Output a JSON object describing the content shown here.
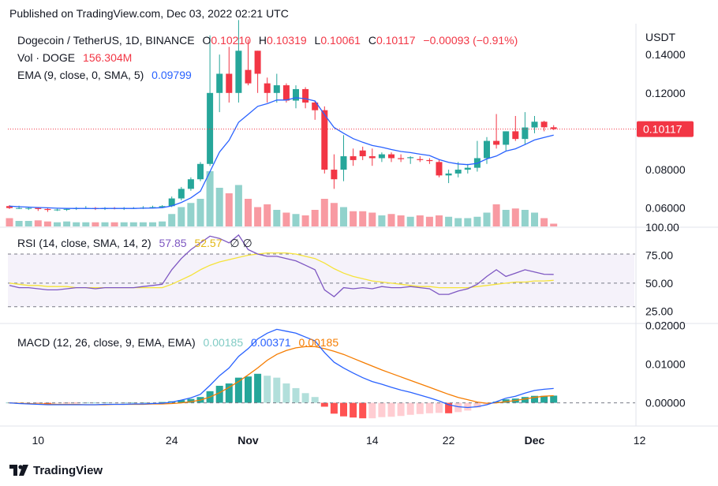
{
  "published": "Published on TradingView.com, Dec 03, 2022 02:21 UTC",
  "footer": {
    "brand": "TradingView",
    "logo_icon": "tradingview-logo-icon"
  },
  "legend": {
    "symbol": "Dogecoin / TetherUS, 1D, BINANCE",
    "o_label": "O",
    "o_value": "0.10210",
    "h_label": "H",
    "h_value": "0.10319",
    "l_label": "L",
    "l_value": "0.10061",
    "c_label": "C",
    "c_value": "0.10117",
    "change": "−0.00093 (−0.91%)",
    "vol_label": "Vol · DOGE",
    "vol_value": "156.304M",
    "ema_label": "EMA (9, close, 0, SMA, 5)",
    "ema_value": "0.09799",
    "rsi_label": "RSI (14, close, SMA, 14, 2)",
    "rsi_value": "57.85",
    "rsi_ma_value": "52.57",
    "rsi_extra": "∅ ∅",
    "macd_label": "MACD (12, 26, close, 9, EMA, EMA)",
    "macd_hist": "0.00185",
    "macd_line": "0.00371",
    "macd_signal": "0.00185"
  },
  "colors": {
    "up": "#26a69a",
    "down": "#f23645",
    "ema": "#2962ff",
    "rsi": "#7e57c2",
    "rsi_ma": "#f5e33a",
    "macd": "#2962ff",
    "signal": "#f57c00"
  },
  "price_axis": {
    "currency": "USDT",
    "ticks": [
      "0.14000",
      "0.12000",
      "0.08000",
      "0.06000"
    ],
    "last_price": "0.10117"
  },
  "rsi_axis": {
    "ticks": [
      "100.00",
      "75.00",
      "50.00",
      "25.00"
    ]
  },
  "macd_axis": {
    "ticks": [
      "0.02000",
      "0.01000",
      "0.00000"
    ]
  },
  "time_axis": {
    "ticks": [
      "10",
      "24",
      "Nov",
      "14",
      "22",
      "Dec",
      "12"
    ]
  },
  "chart_data": {
    "type": "candlestick",
    "dates": [
      "10-07",
      "10-08",
      "10-09",
      "10-10",
      "10-11",
      "10-12",
      "10-13",
      "10-14",
      "10-15",
      "10-16",
      "10-17",
      "10-18",
      "10-19",
      "10-20",
      "10-21",
      "10-22",
      "10-23",
      "10-24",
      "10-25",
      "10-26",
      "10-27",
      "10-28",
      "10-29",
      "10-30",
      "10-31",
      "11-01",
      "11-02",
      "11-03",
      "11-04",
      "11-05",
      "11-06",
      "11-07",
      "11-08",
      "11-09",
      "11-10",
      "11-11",
      "11-12",
      "11-13",
      "11-14",
      "11-15",
      "11-16",
      "11-17",
      "11-18",
      "11-19",
      "11-20",
      "11-21",
      "11-22",
      "11-23",
      "11-24",
      "11-25",
      "11-26",
      "11-27",
      "11-28",
      "11-29",
      "11-30",
      "12-01",
      "12-02",
      "12-03"
    ],
    "open": [
      0.061,
      0.06,
      0.06,
      0.06,
      0.0595,
      0.059,
      0.0592,
      0.0595,
      0.06,
      0.06,
      0.0595,
      0.06,
      0.0598,
      0.06,
      0.06,
      0.0602,
      0.0605,
      0.061,
      0.065,
      0.07,
      0.075,
      0.083,
      0.12,
      0.13,
      0.12,
      0.132,
      0.142,
      0.125,
      0.12,
      0.124,
      0.116,
      0.122,
      0.115,
      0.111,
      0.08,
      0.08,
      0.087,
      0.09,
      0.087,
      0.086,
      0.088,
      0.086,
      0.086,
      0.0855,
      0.085,
      0.084,
      0.077,
      0.078,
      0.08,
      0.081,
      0.086,
      0.095,
      0.093,
      0.1,
      0.096,
      0.102,
      0.105,
      0.1021
    ],
    "high": [
      0.0615,
      0.0612,
      0.0605,
      0.0605,
      0.06,
      0.0596,
      0.06,
      0.0605,
      0.061,
      0.0605,
      0.0605,
      0.0605,
      0.0605,
      0.0605,
      0.061,
      0.0612,
      0.0615,
      0.066,
      0.071,
      0.076,
      0.084,
      0.15,
      0.14,
      0.144,
      0.158,
      0.148,
      0.142,
      0.128,
      0.13,
      0.125,
      0.124,
      0.123,
      0.116,
      0.113,
      0.088,
      0.098,
      0.091,
      0.092,
      0.091,
      0.089,
      0.089,
      0.088,
      0.087,
      0.087,
      0.086,
      0.085,
      0.08,
      0.084,
      0.083,
      0.095,
      0.097,
      0.109,
      0.1,
      0.108,
      0.11,
      0.108,
      0.1055,
      0.1032
    ],
    "low": [
      0.0595,
      0.0595,
      0.059,
      0.0585,
      0.058,
      0.0585,
      0.0585,
      0.059,
      0.0595,
      0.059,
      0.059,
      0.0593,
      0.059,
      0.0595,
      0.0595,
      0.0598,
      0.06,
      0.0605,
      0.064,
      0.069,
      0.074,
      0.082,
      0.11,
      0.115,
      0.115,
      0.124,
      0.12,
      0.115,
      0.115,
      0.115,
      0.112,
      0.112,
      0.106,
      0.078,
      0.07,
      0.074,
      0.082,
      0.085,
      0.082,
      0.084,
      0.084,
      0.084,
      0.083,
      0.084,
      0.083,
      0.076,
      0.073,
      0.076,
      0.078,
      0.079,
      0.083,
      0.091,
      0.09,
      0.095,
      0.093,
      0.099,
      0.1,
      0.1006
    ],
    "close": [
      0.06,
      0.06,
      0.06,
      0.0595,
      0.059,
      0.0592,
      0.0595,
      0.06,
      0.06,
      0.0595,
      0.06,
      0.0598,
      0.06,
      0.06,
      0.0602,
      0.0605,
      0.061,
      0.065,
      0.07,
      0.075,
      0.083,
      0.12,
      0.13,
      0.12,
      0.142,
      0.125,
      0.13,
      0.12,
      0.124,
      0.116,
      0.122,
      0.115,
      0.111,
      0.08,
      0.075,
      0.087,
      0.085,
      0.087,
      0.086,
      0.088,
      0.086,
      0.0855,
      0.0865,
      0.085,
      0.0845,
      0.077,
      0.078,
      0.08,
      0.081,
      0.086,
      0.095,
      0.093,
      0.1,
      0.096,
      0.102,
      0.105,
      0.1021,
      0.1012
    ],
    "volume_relative": [
      0.3,
      0.2,
      0.2,
      0.22,
      0.18,
      0.15,
      0.18,
      0.15,
      0.15,
      0.15,
      0.15,
      0.15,
      0.15,
      0.15,
      0.15,
      0.15,
      0.18,
      0.45,
      0.7,
      0.85,
      1.0,
      2.0,
      1.4,
      1.2,
      1.5,
      1.0,
      0.7,
      0.8,
      0.6,
      0.5,
      0.45,
      0.4,
      0.6,
      1.0,
      0.85,
      0.7,
      0.55,
      0.55,
      0.5,
      0.4,
      0.45,
      0.4,
      0.35,
      0.4,
      0.35,
      0.4,
      0.35,
      0.3,
      0.3,
      0.35,
      0.5,
      0.8,
      0.6,
      0.65,
      0.6,
      0.5,
      0.3,
      0.1
    ],
    "ema": [
      0.061,
      0.0607,
      0.0605,
      0.0603,
      0.0601,
      0.0599,
      0.0598,
      0.0598,
      0.0598,
      0.0597,
      0.0598,
      0.0598,
      0.0598,
      0.0598,
      0.0599,
      0.06,
      0.0602,
      0.0611,
      0.0629,
      0.0653,
      0.0688,
      0.079,
      0.0892,
      0.0953,
      0.1047,
      0.1088,
      0.113,
      0.1144,
      0.1163,
      0.1163,
      0.1175,
      0.117,
      0.1158,
      0.1087,
      0.102,
      0.099,
      0.0962,
      0.0943,
      0.0926,
      0.0917,
      0.0905,
      0.0895,
      0.0889,
      0.0881,
      0.0874,
      0.0853,
      0.0838,
      0.083,
      0.0826,
      0.0833,
      0.0856,
      0.0871,
      0.0897,
      0.0909,
      0.0931,
      0.0955,
      0.0968,
      0.098
    ],
    "rsi": [
      48,
      46,
      46,
      45,
      44,
      44,
      45,
      46,
      46,
      45,
      46,
      46,
      46,
      46,
      47,
      48,
      49,
      62,
      72,
      80,
      86,
      92,
      90,
      86,
      93,
      80,
      76,
      74,
      74,
      72,
      70,
      66,
      62,
      44,
      38,
      46,
      45,
      46,
      45,
      47,
      46,
      46,
      47,
      46,
      45,
      40,
      40,
      43,
      45,
      49,
      56,
      62,
      56,
      59,
      62,
      60,
      58,
      57.85
    ],
    "rsi_ma": [
      50,
      49,
      48,
      48,
      47,
      47,
      47,
      46,
      46,
      46,
      46,
      46,
      46,
      46,
      46,
      46,
      46,
      49,
      53,
      57,
      62,
      66,
      69,
      71,
      73,
      75,
      76,
      77,
      77,
      77,
      76,
      74,
      72,
      68,
      63,
      59,
      56,
      54,
      52,
      51,
      50,
      49,
      48,
      47,
      47,
      46,
      46,
      46,
      46,
      47,
      48,
      49,
      50,
      51,
      51,
      52,
      52,
      52.57
    ],
    "macd": [
      0,
      -0.0002,
      -0.0003,
      -0.0004,
      -0.0005,
      -0.0005,
      -0.0005,
      -0.0005,
      -0.0005,
      -0.0005,
      -0.0004,
      -0.0004,
      -0.0004,
      -0.0003,
      -0.0003,
      -0.0002,
      -0.0001,
      0.0002,
      0.0007,
      0.0013,
      0.0022,
      0.0045,
      0.007,
      0.009,
      0.012,
      0.014,
      0.0165,
      0.018,
      0.019,
      0.0185,
      0.018,
      0.017,
      0.016,
      0.013,
      0.0105,
      0.009,
      0.0077,
      0.0065,
      0.0055,
      0.0048,
      0.004,
      0.0033,
      0.0027,
      0.002,
      0.0013,
      0.0005,
      -0.0005,
      -0.001,
      -0.0012,
      -0.001,
      -0.0005,
      0.0003,
      0.0012,
      0.0017,
      0.0025,
      0.0032,
      0.0035,
      0.00371
    ],
    "signal": [
      0,
      -0.0001,
      -0.0002,
      -0.0003,
      -0.0003,
      -0.0004,
      -0.0004,
      -0.0004,
      -0.0005,
      -0.0005,
      -0.0005,
      -0.0004,
      -0.0004,
      -0.0004,
      -0.0004,
      -0.0003,
      -0.0003,
      -0.0002,
      0,
      0.0003,
      0.0007,
      0.0015,
      0.0026,
      0.004,
      0.0055,
      0.0072,
      0.009,
      0.011,
      0.0125,
      0.0135,
      0.0142,
      0.0145,
      0.0145,
      0.014,
      0.0133,
      0.0125,
      0.0115,
      0.0105,
      0.0095,
      0.0085,
      0.0076,
      0.0067,
      0.0058,
      0.0049,
      0.004,
      0.0031,
      0.0022,
      0.0014,
      0.0008,
      0.0002,
      -0.0001,
      0,
      0.0003,
      0.0006,
      0.001,
      0.0014,
      0.0017,
      0.00185
    ],
    "price_range": [
      0.05,
      0.152
    ],
    "rsi_range": [
      14,
      100
    ],
    "macd_range": [
      -0.006,
      0.0205
    ],
    "rsi_bands": [
      30,
      50,
      70
    ]
  }
}
